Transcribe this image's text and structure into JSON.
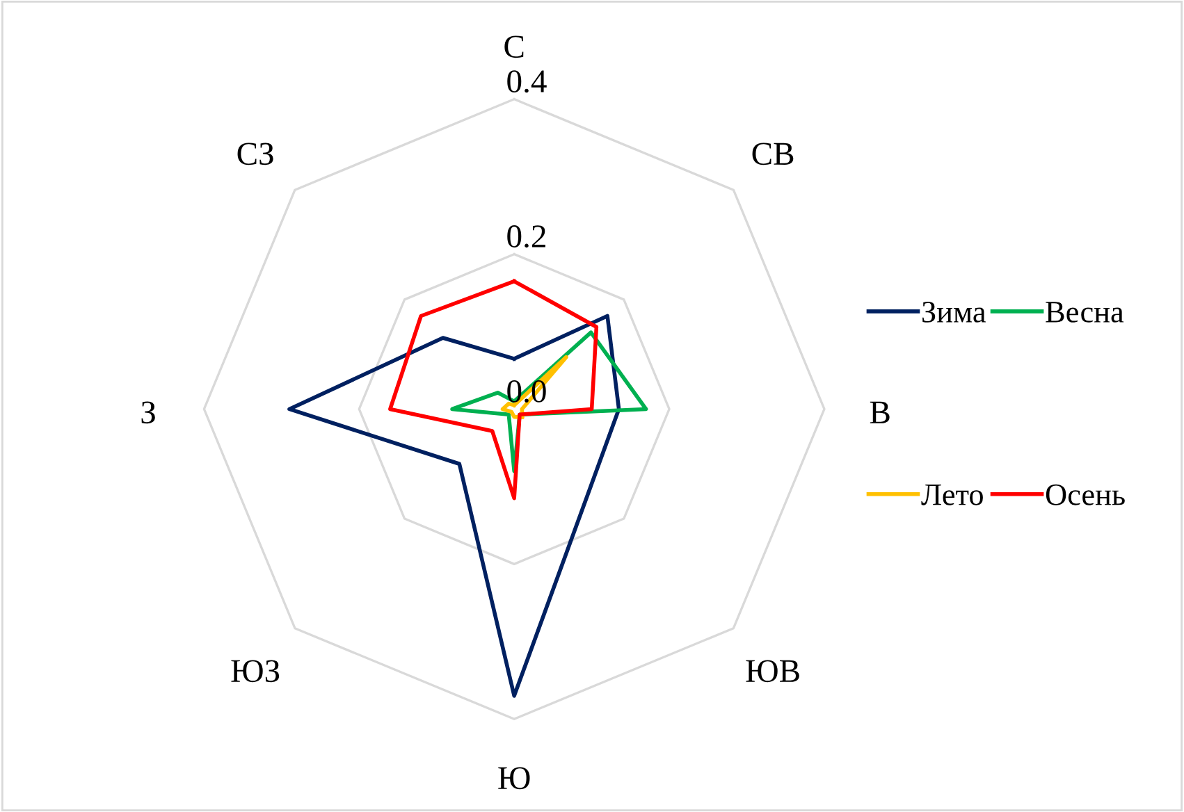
{
  "chart_data": {
    "type": "radar",
    "categories": [
      "С",
      "СВ",
      "В",
      "ЮВ",
      "Ю",
      "ЮЗ",
      "З",
      "СЗ"
    ],
    "series": [
      {
        "name": "Зима",
        "color": "#002060",
        "values": [
          0.065,
          0.17,
          0.135,
          0.14,
          0.37,
          0.1,
          0.29,
          0.13
        ]
      },
      {
        "name": "Весна",
        "color": "#00b050",
        "values": [
          0.01,
          0.14,
          0.17,
          0.01,
          0.08,
          0.01,
          0.08,
          0.03
        ]
      },
      {
        "name": "Лето",
        "color": "#ffc000",
        "values": [
          0.005,
          0.095,
          0.01,
          0.015,
          0.01,
          0.005,
          0.015,
          0.01
        ]
      },
      {
        "name": "Осень",
        "color": "#ff0000",
        "values": [
          0.165,
          0.15,
          0.1,
          0.01,
          0.115,
          0.04,
          0.16,
          0.17
        ]
      }
    ],
    "ylim": [
      0,
      0.4
    ],
    "yticks": [
      {
        "value": 0,
        "label": "0.0"
      },
      {
        "value": 0.2,
        "label": "0.2"
      },
      {
        "value": 0.4,
        "label": "0.4"
      }
    ],
    "grid": true,
    "legend": "right",
    "marker": "none",
    "line_style": "solid"
  }
}
